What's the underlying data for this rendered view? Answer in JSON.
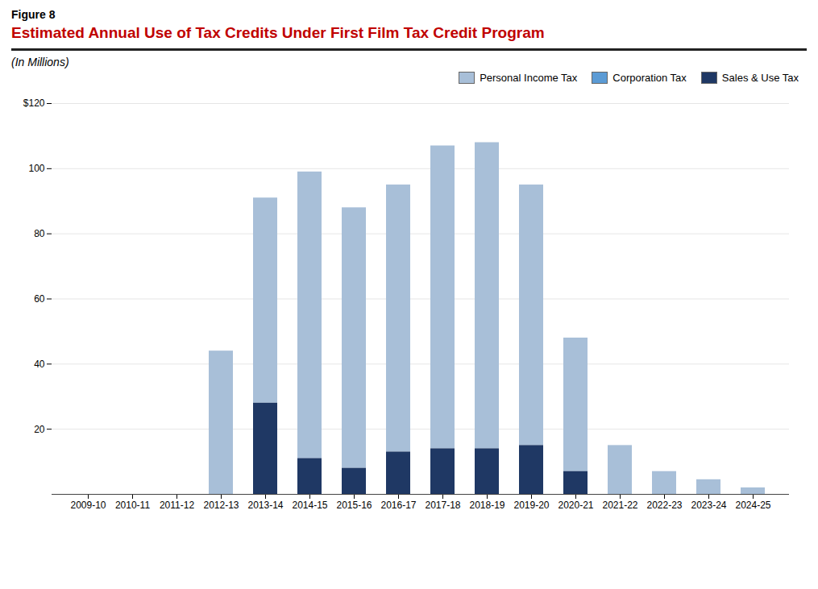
{
  "chart_data": {
    "type": "bar",
    "stacked": true,
    "annotations": [
      "Figure 8"
    ],
    "title": "Estimated Annual Use of Tax Credits Under First Film Tax Credit Program",
    "subtitle": "(In Millions)",
    "categories": [
      "2009-10",
      "2010-11",
      "2011-12",
      "2012-13",
      "2013-14",
      "2014-15",
      "2015-16",
      "2016-17",
      "2017-18",
      "2018-19",
      "2019-20",
      "2020-21",
      "2021-22",
      "2022-23",
      "2023-24",
      "2024-25"
    ],
    "series": [
      {
        "name": "Personal Income Tax",
        "color": "#a8bfd8",
        "values": [
          0,
          0,
          0,
          44,
          63,
          88,
          80,
          82,
          93,
          94,
          80,
          41,
          15,
          7,
          4.5,
          2
        ]
      },
      {
        "name": "Corporation Tax",
        "color": "#5b9bd5",
        "values": [
          0,
          0,
          0,
          0,
          0,
          0,
          0,
          0,
          0,
          0,
          0,
          0,
          0,
          0,
          0,
          0
        ]
      },
      {
        "name": "Sales & Use Tax",
        "color": "#1f3864",
        "values": [
          0,
          0,
          0,
          0,
          28,
          11,
          8,
          13,
          14,
          14,
          15,
          7,
          0,
          0,
          0,
          0
        ]
      }
    ],
    "ylim": [
      0,
      120
    ],
    "yticks": [
      20,
      40,
      60,
      80,
      100,
      {
        "value": 120,
        "label": "$120"
      }
    ],
    "grid": true,
    "legend": "upper right"
  }
}
